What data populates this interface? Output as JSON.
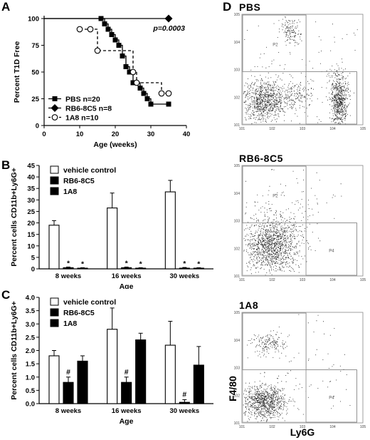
{
  "panels": {
    "A": "A",
    "B": "B",
    "C": "C",
    "D": "D"
  },
  "colors": {
    "ink": "#000000",
    "open": "#ffffff",
    "dots": "#222222"
  },
  "chart_data": [
    {
      "id": "A",
      "type": "line",
      "step": true,
      "xlabel": "Age (weeks)",
      "ylabel": "Percent T1D Free",
      "xlim": [
        0,
        40
      ],
      "ylim": [
        0,
        100
      ],
      "xticks": [
        "0",
        "10",
        "20",
        "30",
        "40"
      ],
      "yticks": [
        "0",
        "25",
        "50",
        "75",
        "100"
      ],
      "annotation": "p=0.0003",
      "legend_position": "bottom-left",
      "series": [
        {
          "name": "PBS n=20",
          "marker": "square",
          "line": "solid",
          "x": [
            0,
            16,
            17,
            18,
            19,
            20,
            21,
            22,
            23,
            24,
            25,
            27,
            28,
            29,
            30,
            35
          ],
          "y": [
            100,
            100,
            95,
            90,
            85,
            80,
            75,
            65,
            55,
            50,
            40,
            35,
            30,
            25,
            20,
            20
          ]
        },
        {
          "name": "RB6-8C5 n=8",
          "marker": "diamond",
          "line": "solid",
          "x": [
            0,
            35
          ],
          "y": [
            100,
            100
          ]
        },
        {
          "name": "1A8 n=10",
          "marker": "open-circle",
          "line": "dashed",
          "x": [
            10,
            13,
            15,
            25,
            26,
            33,
            35
          ],
          "y": [
            90,
            90,
            70,
            50,
            40,
            30,
            30
          ]
        }
      ]
    },
    {
      "id": "B",
      "type": "bar",
      "xlabel": "Age",
      "ylabel": "Percent cells CD11b+Ly6G+",
      "ylim": [
        0,
        45
      ],
      "yticks": [
        "0",
        "5",
        "10",
        "15",
        "20",
        "25",
        "30",
        "35",
        "40",
        "45"
      ],
      "categories": [
        "8 weeks",
        "16 weeks",
        "30 weeks"
      ],
      "legend_position": "top-left",
      "series": [
        {
          "name": "vehicle control",
          "fill": "open",
          "values": [
            19,
            26.5,
            33.5
          ],
          "errors": [
            2,
            6.5,
            5
          ]
        },
        {
          "name": "RB6-8C5",
          "fill": "solid",
          "values": [
            0.5,
            0.5,
            0.3
          ],
          "errors": [
            0.3,
            0.3,
            0.3
          ]
        },
        {
          "name": "1A8",
          "fill": "solid",
          "values": [
            0.3,
            0.3,
            0.3
          ],
          "errors": [
            0.2,
            0.2,
            0.2
          ]
        }
      ],
      "markers": [
        [
          "",
          "*",
          "*"
        ],
        [
          "",
          "*",
          "*"
        ],
        [
          "",
          "*",
          "*"
        ]
      ]
    },
    {
      "id": "C",
      "type": "bar",
      "xlabel": "Age",
      "ylabel": "Percent cells CD11b+Ly6G+",
      "ylim": [
        0,
        4.0
      ],
      "yticks": [
        "0.0",
        "0.5",
        "1.0",
        "1.5",
        "2.0",
        "2.5",
        "3.0",
        "3.5",
        "4.0"
      ],
      "categories": [
        "8 weeks",
        "16 weeks",
        "30 weeks"
      ],
      "legend_position": "top-left",
      "series": [
        {
          "name": "vehicle control",
          "fill": "open",
          "values": [
            1.8,
            2.8,
            2.2
          ],
          "errors": [
            0.2,
            0.8,
            0.9
          ]
        },
        {
          "name": "RB6-8C5",
          "fill": "solid",
          "values": [
            0.8,
            0.8,
            0.05
          ],
          "errors": [
            0.2,
            0.2,
            0.1
          ]
        },
        {
          "name": "1A8",
          "fill": "solid",
          "values": [
            1.6,
            2.4,
            1.45
          ],
          "errors": [
            0.2,
            0.25,
            0.7
          ]
        }
      ],
      "markers": [
        [
          "",
          "#",
          ""
        ],
        [
          "",
          "#",
          ""
        ],
        [
          "",
          "#",
          ""
        ]
      ]
    }
  ],
  "flow": {
    "panels": [
      {
        "title": "PBS",
        "gates": [
          "P2",
          "",
          ""
        ],
        "population": "pbs"
      },
      {
        "title": "RB6-8C5",
        "gates": [
          "P2",
          "",
          "P4"
        ],
        "population": "rb6"
      },
      {
        "title": "1A8",
        "gates": [
          "P2",
          "",
          "P4"
        ],
        "population": "1a8"
      }
    ],
    "ylabel": "F4/80",
    "xlabel": "Ly6G"
  }
}
